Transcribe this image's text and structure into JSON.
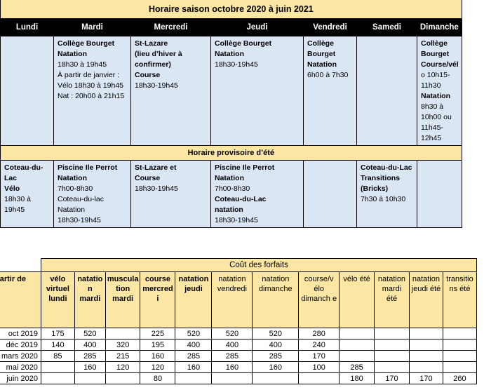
{
  "schedule": {
    "title": "Horaire saison octobre 2020 à juin 2021",
    "days": [
      "Lundi",
      "Mardi",
      "Mercredi",
      "Jeudi",
      "Vendredi",
      "Samedi",
      "Dimanche"
    ],
    "row1": {
      "mardi": [
        {
          "t": "Collège Bourget",
          "b": true
        },
        {
          "t": "Natation",
          "b": true
        },
        {
          "t": "18h30 à 19h45",
          "b": false
        },
        {
          "t": "À partir de janvier :",
          "b": false
        },
        {
          "t": "Vélo 18h30 à 19h45",
          "b": false
        },
        {
          "t": "Nat : 20h00 à 21h15",
          "b": false
        }
      ],
      "mercredi": [
        {
          "t": "St-Lazare",
          "b": true
        },
        {
          "t": "(lieu d’hiver à",
          "b": true
        },
        {
          "t": "confirmer)",
          "b": true
        },
        {
          "t": "Course",
          "b": true
        },
        {
          "t": "18h30-19h45",
          "b": false
        }
      ],
      "jeudi": [
        {
          "t": "Collège Bourget",
          "b": true
        },
        {
          "t": "Natation",
          "b": true
        },
        {
          "t": "18h30-19h45",
          "b": false
        }
      ],
      "vendredi": [
        {
          "t": "Collège",
          "b": true
        },
        {
          "t": "Bourget",
          "b": true
        },
        {
          "t": "Natation",
          "b": true
        },
        {
          "t": "6h00 à 7h30",
          "b": false
        }
      ],
      "dimanche": [
        {
          "t": "Collège",
          "b": true
        },
        {
          "t": "Bourget",
          "b": true
        },
        {
          "t": "Course/vél",
          "b": true
        },
        {
          "t": "o 10h15-",
          "b": false
        },
        {
          "t": "11h30",
          "b": false
        },
        {
          "t": "Natation",
          "b": true
        },
        {
          "t": "8h30 à",
          "b": false
        },
        {
          "t": "10h00 ou",
          "b": false
        },
        {
          "t": "11h45-",
          "b": false
        },
        {
          "t": "12h45",
          "b": false
        }
      ]
    },
    "summer_title": "Horaire provisoire d’été",
    "row2": {
      "lundi": [
        {
          "t": "Coteau-du-",
          "b": true
        },
        {
          "t": "Lac",
          "b": true
        },
        {
          "t": "Vélo",
          "b": true
        },
        {
          "t": "18h30 à",
          "b": false
        },
        {
          "t": "19h45",
          "b": false
        }
      ],
      "mardi": [
        {
          "t": "Piscine Ile Perrot",
          "b": true
        },
        {
          "t": "Natation",
          "b": true
        },
        {
          "t": "7h00-8h30",
          "b": false
        },
        {
          "t": "Coteau-du-lac",
          "b": false
        },
        {
          "t": "Natation",
          "b": false
        },
        {
          "t": "18h30-19h45",
          "b": false
        }
      ],
      "mercredi": [
        {
          "t": "St-Lazare et",
          "b": true
        },
        {
          "t": "Course",
          "b": true
        },
        {
          "t": "18h30-19h45",
          "b": false
        }
      ],
      "jeudi": [
        {
          "t": "Piscine Ile Perrot",
          "b": true
        },
        {
          "t": "Natation",
          "b": true
        },
        {
          "t": "7h00-8h30",
          "b": false
        },
        {
          "t": "Coteau-du-Lac",
          "b": true
        },
        {
          "t": "natation",
          "b": true
        },
        {
          "t": "18h30-19h45",
          "b": false
        }
      ],
      "samedi": [
        {
          "t": "Coteau-du-Lac",
          "b": true
        },
        {
          "t": "Transitions",
          "b": true
        },
        {
          "t": "(Bricks)",
          "b": true
        },
        {
          "t": "7h30 à 10h30",
          "b": false
        }
      ]
    }
  },
  "costs": {
    "title": "Coût des forfaits",
    "first_header": "partir de",
    "headers": [
      {
        "t": "vélo virtuel lundi",
        "bold": true
      },
      {
        "t": "natatio n mardi",
        "bold": true
      },
      {
        "t": "muscula tion mardi",
        "bold": true
      },
      {
        "t": "course mercred i",
        "bold": true
      },
      {
        "t": "natation jeudi",
        "bold": true
      },
      {
        "t": "natation vendredi",
        "bold": false
      },
      {
        "t": "natation dimanche",
        "bold": false
      },
      {
        "t": "course/v élo dimanch e",
        "bold": false
      },
      {
        "t": "vélo été",
        "bold": false
      },
      {
        "t": "natation mardi été",
        "bold": false
      },
      {
        "t": "natation jeudi été",
        "bold": false
      },
      {
        "t": "transitio ns été",
        "bold": false
      }
    ],
    "rows": [
      {
        "label": "oct 2019",
        "cells": [
          "175",
          "520",
          "",
          "225",
          "520",
          "520",
          "520",
          "280",
          "",
          "",
          "",
          ""
        ]
      },
      {
        "label": "déc 2019",
        "cells": [
          "140",
          "400",
          "320",
          "195",
          "400",
          "400",
          "400",
          "240",
          "",
          "",
          "",
          ""
        ]
      },
      {
        "label": "mars 2020",
        "cells": [
          "85",
          "285",
          "215",
          "160",
          "285",
          "285",
          "285",
          "170",
          "",
          "",
          "",
          ""
        ]
      },
      {
        "label": "mai 2020",
        "cells": [
          "",
          "160",
          "120",
          "120",
          "160",
          "160",
          "160",
          "100",
          "285",
          "",
          "",
          ""
        ]
      },
      {
        "label": "juin 2020",
        "cells": [
          "",
          "",
          "",
          "80",
          "",
          "",
          "",
          "",
          "180",
          "170",
          "170",
          "260"
        ]
      }
    ]
  }
}
